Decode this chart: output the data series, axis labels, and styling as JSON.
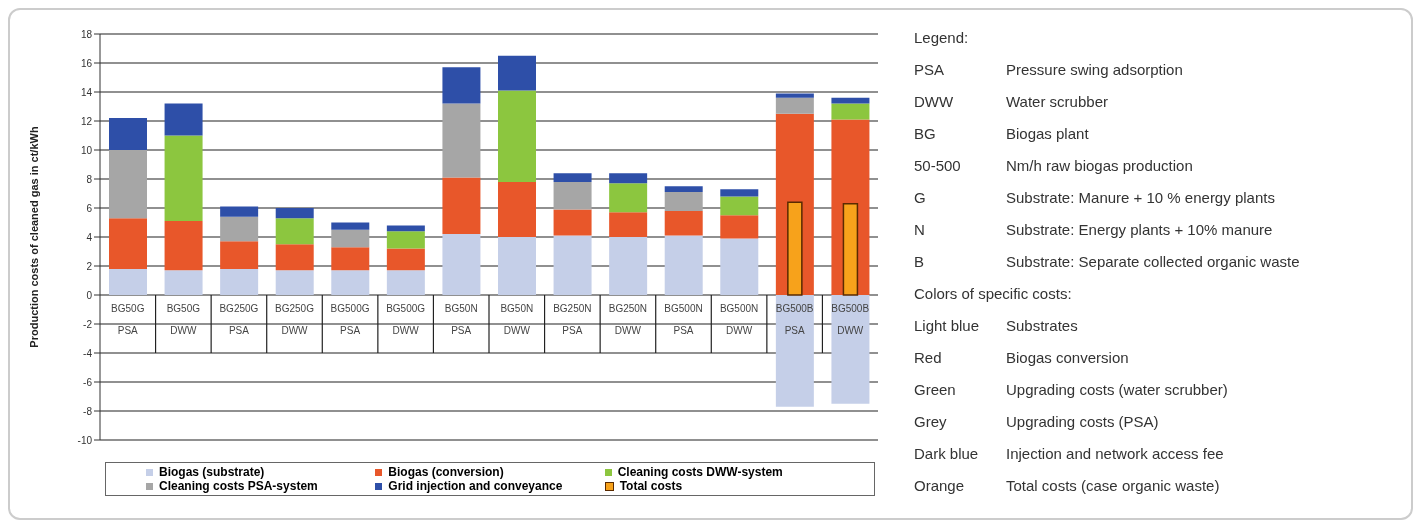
{
  "chart_data": [
    {
      "type": "bar",
      "stacked": true,
      "ylabel": "Production costs of cleaned gas in ct/kWh",
      "categories": [
        "BG50G PSA",
        "BG50G DWW",
        "BG250G PSA",
        "BG250G DWW",
        "BG500G PSA",
        "BG500G DWW",
        "BG50N PSA",
        "BG50N DWW",
        "BG250N PSA",
        "BG250N DWW",
        "BG500N PSA",
        "BG500N DWW",
        "BG500B PSA",
        "BG500B DWW"
      ],
      "series": [
        {
          "name": "Biogas (substrate)",
          "color": "#c5cfe8",
          "values": [
            1.8,
            1.7,
            1.8,
            1.7,
            1.7,
            1.7,
            4.2,
            4.0,
            4.1,
            4.0,
            4.1,
            3.9,
            -7.7,
            -7.5
          ]
        },
        {
          "name": "Biogas (conversion)",
          "color": "#e8572a",
          "values": [
            3.5,
            3.4,
            1.9,
            1.8,
            1.6,
            1.5,
            3.9,
            3.8,
            1.8,
            1.7,
            1.7,
            1.6,
            12.5,
            12.1
          ]
        },
        {
          "name": "Cleaning costs DWW-system",
          "color": "#8cc63f",
          "values": [
            null,
            5.9,
            null,
            1.8,
            null,
            1.2,
            null,
            6.3,
            null,
            2.0,
            null,
            1.3,
            null,
            1.1
          ]
        },
        {
          "name": "Cleaning costs PSA-system",
          "color": "#a6a6a6",
          "values": [
            4.7,
            null,
            1.7,
            null,
            1.2,
            null,
            5.1,
            null,
            1.9,
            null,
            1.3,
            null,
            1.1,
            null
          ]
        },
        {
          "name": "Grid injection and conveyance",
          "color": "#2e4fa8",
          "values": [
            2.2,
            2.2,
            0.7,
            0.7,
            0.5,
            0.4,
            2.5,
            2.4,
            0.6,
            0.7,
            0.4,
            0.5,
            0.3,
            0.4
          ]
        }
      ],
      "ylim": [
        -10,
        18
      ],
      "yticks": [
        -10,
        -8,
        -6,
        -4,
        -2,
        0,
        2,
        4,
        6,
        8,
        10,
        12,
        14,
        16,
        18
      ],
      "grid": "y",
      "legend": "bottom",
      "annotations": [
        "Legend:",
        "PSA\tPressure swing adsorption",
        "DWW\tWater scrubber",
        "BG\tBiogas plant",
        "50-500\tNm/h raw biogas production",
        "G\tSubstrate: Manure + 10 % energy plants",
        "N\tSubstrate: Energy plants + 10% manure",
        "B\tSubstrate: Separate collected organic waste",
        "Colors of specific costs:",
        "Light blue\tSubstrates",
        "Red\tBiogas conversion",
        "Green\tUpgrading costs (water scrubber)",
        "Grey\tUpgrading costs (PSA)",
        "Dark blue\tInjection and network access fee",
        "Orange\tTotal costs (case organic waste)"
      ]
    },
    {
      "type": "bar",
      "tick_labels": "x",
      "legend": "bottom",
      "categories": [
        null,
        null,
        null,
        null,
        null,
        null,
        null,
        null,
        null,
        null,
        null,
        null,
        null,
        null
      ],
      "series": [
        {
          "name": "Total costs",
          "color": "#f7a21b",
          "values": [
            null,
            null,
            null,
            null,
            null,
            null,
            null,
            null,
            null,
            null,
            null,
            null,
            6.4,
            6.3
          ]
        }
      ],
      "ylim": [
        -10,
        18
      ]
    }
  ]
}
